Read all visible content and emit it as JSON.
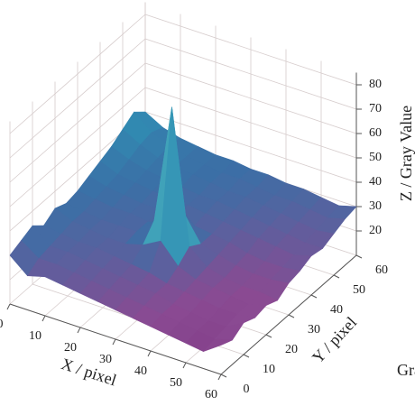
{
  "chart_data": {
    "type": "surface3d",
    "xlabel": "X / pixel",
    "ylabel": "Y / pixel",
    "zlabel": "Z / Gray Value",
    "colorbar_label": "Gray Value",
    "x": [
      0,
      5,
      10,
      15,
      20,
      25,
      30,
      35,
      40,
      45,
      50,
      55,
      60
    ],
    "y": [
      0,
      5,
      10,
      15,
      20,
      25,
      30,
      35,
      40,
      45,
      50,
      55,
      60
    ],
    "z": [
      [
        30,
        24,
        26,
        25,
        24,
        23,
        22,
        21,
        20,
        19,
        18,
        17,
        22
      ],
      [
        32,
        27,
        27,
        26,
        25,
        24,
        23,
        22,
        21,
        20,
        19,
        18,
        20
      ],
      [
        34,
        28,
        28,
        27,
        26,
        25,
        24,
        23,
        21,
        20,
        19,
        19,
        23
      ],
      [
        30,
        29,
        28,
        28,
        27,
        26,
        25,
        23,
        22,
        21,
        20,
        20,
        21
      ],
      [
        33,
        30,
        29,
        28,
        28,
        30,
        34,
        26,
        23,
        22,
        21,
        20,
        22
      ],
      [
        31,
        30,
        29,
        29,
        29,
        36,
        85,
        30,
        24,
        22,
        21,
        21,
        20
      ],
      [
        32,
        31,
        30,
        30,
        29,
        30,
        38,
        27,
        25,
        23,
        22,
        22,
        23
      ],
      [
        34,
        32,
        31,
        30,
        30,
        29,
        28,
        27,
        26,
        24,
        23,
        23,
        24
      ],
      [
        36,
        33,
        32,
        31,
        30,
        30,
        29,
        28,
        27,
        26,
        25,
        24,
        26
      ],
      [
        38,
        35,
        33,
        32,
        31,
        30,
        30,
        29,
        28,
        27,
        26,
        25,
        25
      ],
      [
        41,
        37,
        34,
        33,
        32,
        31,
        30,
        30,
        29,
        28,
        27,
        26,
        27
      ],
      [
        44,
        38,
        35,
        33,
        32,
        31,
        31,
        30,
        29,
        29,
        28,
        27,
        29
      ],
      [
        40,
        36,
        34,
        33,
        32,
        32,
        31,
        31,
        30,
        30,
        29,
        28,
        30
      ]
    ],
    "colormap": [
      "#7a2e7e",
      "#8a4a92",
      "#3b6fa6",
      "#2f8fb4",
      "#5cc0c0",
      "#b0d8c0",
      "#e06050",
      "#e03a2e"
    ],
    "xlim": [
      0,
      60
    ],
    "xticks": [
      0,
      10,
      20,
      30,
      40,
      50,
      60
    ],
    "ylim": [
      0,
      60
    ],
    "yticks": [
      0,
      10,
      20,
      30,
      40,
      50,
      60
    ],
    "zlim": [
      10,
      85
    ],
    "zticks": [
      20,
      30,
      40,
      50,
      60,
      70,
      80
    ],
    "grid": true
  }
}
